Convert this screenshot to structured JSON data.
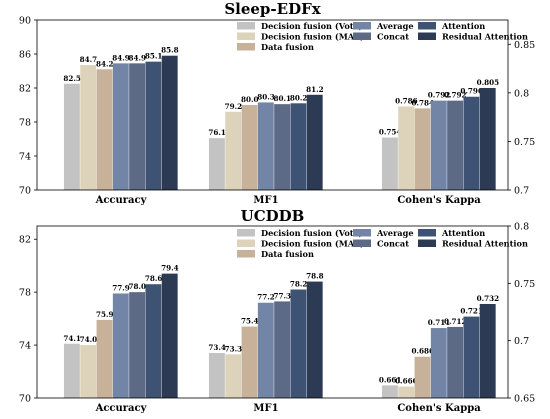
{
  "chart_data": [
    {
      "type": "bar",
      "title": "Sleep-EDFx",
      "categories": [
        "Accuracy",
        "MF1",
        "Cohen's Kappa"
      ],
      "left_axis": {
        "ylim": [
          70,
          90
        ],
        "ticks": [
          "70",
          "74",
          "78",
          "82",
          "86",
          "90"
        ]
      },
      "right_axis": {
        "ylim": [
          0.7,
          0.875
        ],
        "ticks": [
          "0.7",
          "0.75",
          "0.8",
          "0.85"
        ]
      },
      "series": [
        {
          "name": "Decision fusion (Vote)",
          "color": "#c3c3c3",
          "values": [
            82.5,
            76.1,
            0.754
          ],
          "labels": [
            "82.5",
            "76.1",
            "0.754"
          ]
        },
        {
          "name": "Decision fusion (MAP)",
          "color": "#ddd3bb",
          "values": [
            84.7,
            79.2,
            0.786
          ],
          "labels": [
            "84.7",
            "79.2",
            "0.786"
          ]
        },
        {
          "name": "Data fusion",
          "color": "#c7b299",
          "values": [
            84.2,
            80.0,
            0.784
          ],
          "labels": [
            "84.2",
            "80.0",
            "0.784"
          ]
        },
        {
          "name": "Average",
          "color": "#7285a6",
          "values": [
            84.9,
            80.3,
            0.792
          ],
          "labels": [
            "84.9",
            "80.3",
            "0.792"
          ]
        },
        {
          "name": "Concat",
          "color": "#5c6a86",
          "values": [
            84.9,
            80.1,
            0.792
          ],
          "labels": [
            "84.9",
            "80.1",
            "0.792"
          ]
        },
        {
          "name": "Attention",
          "color": "#3e5373",
          "values": [
            85.1,
            80.2,
            0.796
          ],
          "labels": [
            "85.1",
            "80.2",
            "0.796"
          ]
        },
        {
          "name": "Residual Attention",
          "color": "#2c3a54",
          "values": [
            85.8,
            81.2,
            0.805
          ],
          "labels": [
            "85.8",
            "81.2",
            "0.805"
          ]
        }
      ]
    },
    {
      "type": "bar",
      "title": "UCDDB",
      "categories": [
        "Accuracy",
        "MF1",
        "Cohen's Kappa"
      ],
      "left_axis": {
        "ylim": [
          70,
          83
        ],
        "ticks": [
          "70",
          "74",
          "78",
          "82"
        ]
      },
      "right_axis": {
        "ylim": [
          0.65,
          0.8
        ],
        "ticks": [
          "0.65",
          "0.7",
          "0.75",
          "0.8"
        ]
      },
      "series": [
        {
          "name": "Decision fusion (Vote)",
          "color": "#c3c3c3",
          "values": [
            74.1,
            73.4,
            0.661
          ],
          "labels": [
            "74.1",
            "73.4",
            "0.661"
          ]
        },
        {
          "name": "Decision fusion (MAP)",
          "color": "#ddd3bb",
          "values": [
            74.0,
            73.3,
            0.66
          ],
          "labels": [
            "74.0",
            "73.3",
            "0.660"
          ]
        },
        {
          "name": "Data fusion",
          "color": "#c7b299",
          "values": [
            75.9,
            75.4,
            0.686
          ],
          "labels": [
            "75.9",
            "75.4",
            "0.686"
          ]
        },
        {
          "name": "Average",
          "color": "#7285a6",
          "values": [
            77.9,
            77.2,
            0.711
          ],
          "labels": [
            "77.9",
            "77.2",
            "0.711"
          ]
        },
        {
          "name": "Concat",
          "color": "#5c6a86",
          "values": [
            78.0,
            77.3,
            0.712
          ],
          "labels": [
            "78.0",
            "77.3",
            "0.712"
          ]
        },
        {
          "name": "Attention",
          "color": "#3e5373",
          "values": [
            78.6,
            78.2,
            0.721
          ],
          "labels": [
            "78.6",
            "78.2",
            "0.721"
          ]
        },
        {
          "name": "Residual Attention",
          "color": "#2c3a54",
          "values": [
            79.4,
            78.8,
            0.732
          ],
          "labels": [
            "79.4",
            "78.8",
            "0.732"
          ]
        }
      ]
    }
  ]
}
